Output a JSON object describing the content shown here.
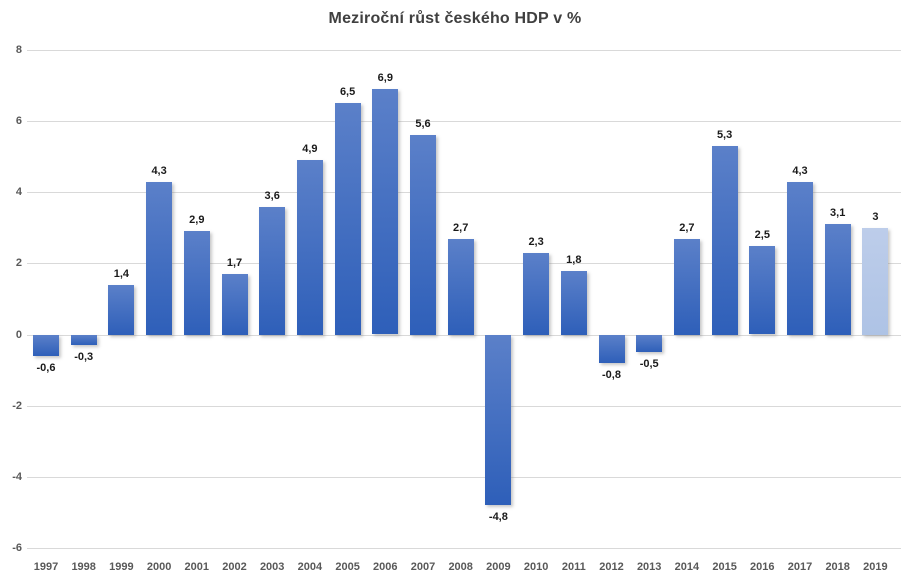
{
  "chart_data": {
    "type": "bar",
    "title": "Meziroční růst českého HDP v %",
    "categories": [
      "1997",
      "1998",
      "1999",
      "2000",
      "2001",
      "2002",
      "2003",
      "2004",
      "2005",
      "2006",
      "2007",
      "2008",
      "2009",
      "2010",
      "2011",
      "2012",
      "2013",
      "2014",
      "2015",
      "2016",
      "2017",
      "2018",
      "2019"
    ],
    "values": [
      -0.6,
      -0.3,
      1.4,
      4.3,
      2.9,
      1.7,
      3.6,
      4.9,
      6.5,
      6.9,
      5.6,
      2.7,
      -4.8,
      2.3,
      1.8,
      -0.8,
      -0.5,
      2.7,
      5.3,
      2.5,
      4.3,
      3.1,
      3
    ],
    "value_labels": [
      "-0,6",
      "-0,3",
      "1,4",
      "4,3",
      "2,9",
      "1,7",
      "3,6",
      "4,9",
      "6,5",
      "6,9",
      "5,6",
      "2,7",
      "-4,8",
      "2,3",
      "1,8",
      "-0,8",
      "-0,5",
      "2,7",
      "5,3",
      "2,5",
      "4,3",
      "3,1",
      "3"
    ],
    "forecast_index": 22,
    "ylim": [
      -6,
      8
    ],
    "yticks": [
      8,
      6,
      4,
      2,
      0,
      -2,
      -4,
      -6
    ],
    "grid": true,
    "legend_position": "none",
    "xlabel": "",
    "ylabel": ""
  },
  "colors": {
    "bar_top": "#5b80c9",
    "bar_bottom": "#2e5fb9",
    "bar_forecast_top": "#bdcdea",
    "bar_forecast_bottom": "#aec3e5",
    "gridline": "#d9d9d9",
    "axis_text": "#595959",
    "title_text": "#404040",
    "value_label_text": "#1a1a1a"
  }
}
